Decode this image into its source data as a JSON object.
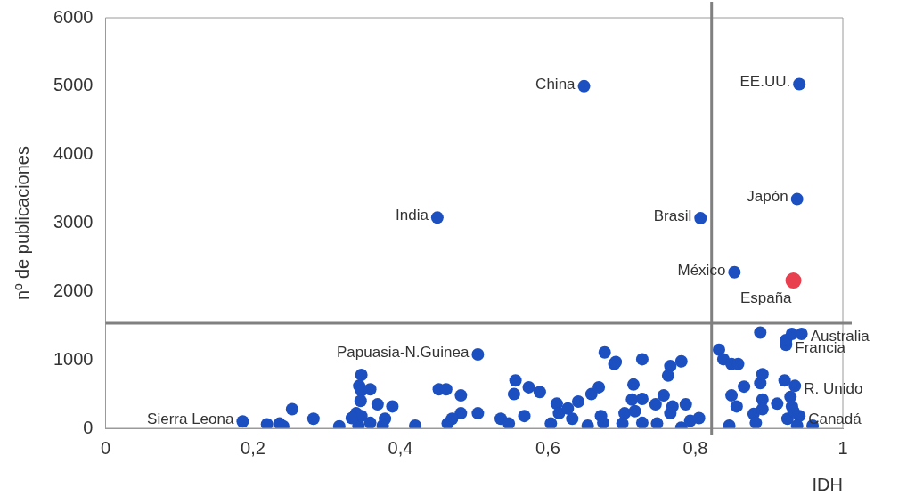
{
  "chart_data": {
    "type": "scatter",
    "xlabel": "IDH",
    "ylabel": "nº de publicaciones",
    "xlim": [
      0,
      1
    ],
    "xticks": [
      0,
      {
        "value": 0.2,
        "label": "0,2"
      },
      {
        "value": 0.4,
        "label": "0,4"
      },
      {
        "value": 0.6,
        "label": "0,6"
      },
      {
        "value": 0.8,
        "label": "0,8"
      },
      1
    ],
    "ylim": [
      0,
      6000
    ],
    "yticks": [
      0,
      1000,
      2000,
      3000,
      4000,
      5000,
      6000
    ],
    "grid": false,
    "legend": false,
    "marker": "circle",
    "ref_lines": [
      {
        "axis": "x",
        "value": 0.822,
        "color": "#808080"
      },
      {
        "axis": "y",
        "value": 1535,
        "color": "#808080"
      }
    ],
    "series": [
      {
        "color": "#1c4fc0",
        "x": [
          0.649,
          0.941,
          0.938,
          0.45,
          0.807,
          0.853,
          0.186,
          0.219,
          0.236,
          0.241,
          0.253,
          0.282,
          0.317,
          0.344,
          0.347,
          0.347,
          0.346,
          0.34,
          0.343,
          0.359,
          0.369,
          0.389,
          0.347,
          0.359,
          0.379,
          0.376,
          0.334,
          0.42,
          0.452,
          0.462,
          0.482,
          0.482,
          0.47,
          0.464,
          0.505,
          0.505,
          0.536,
          0.547,
          0.556,
          0.554,
          0.574,
          0.589,
          0.568,
          0.604,
          0.612,
          0.615,
          0.627,
          0.633,
          0.641,
          0.654,
          0.659,
          0.669,
          0.677,
          0.69,
          0.672,
          0.675,
          0.692,
          0.728,
          0.716,
          0.766,
          0.781,
          0.763,
          0.757,
          0.714,
          0.728,
          0.704,
          0.718,
          0.746,
          0.769,
          0.787,
          0.701,
          0.728,
          0.748,
          0.766,
          0.781,
          0.793,
          0.805,
          0.832,
          0.838,
          0.849,
          0.858,
          0.888,
          0.923,
          0.923,
          0.931,
          0.944,
          0.846,
          0.849,
          0.856,
          0.866,
          0.888,
          0.891,
          0.879,
          0.882,
          0.891,
          0.891,
          0.911,
          0.921,
          0.935,
          0.929,
          0.931,
          0.925,
          0.941,
          0.938,
          0.959,
          0.933
        ],
        "values": [
          5000,
          5030,
          3350,
          3080,
          3070,
          2280,
          100,
          60,
          70,
          30,
          280,
          140,
          30,
          620,
          780,
          550,
          400,
          220,
          40,
          570,
          350,
          320,
          180,
          80,
          140,
          40,
          150,
          40,
          570,
          570,
          480,
          220,
          140,
          70,
          220,
          1080,
          140,
          70,
          700,
          500,
          600,
          530,
          180,
          70,
          360,
          220,
          290,
          140,
          390,
          40,
          500,
          600,
          1110,
          940,
          180,
          80,
          970,
          1010,
          640,
          910,
          980,
          770,
          480,
          420,
          430,
          220,
          250,
          350,
          320,
          350,
          70,
          80,
          70,
          220,
          10,
          110,
          150,
          1150,
          1010,
          940,
          940,
          1400,
          1220,
          1290,
          1380,
          1380,
          40,
          480,
          320,
          610,
          660,
          790,
          210,
          80,
          420,
          280,
          360,
          700,
          620,
          460,
          320,
          140,
          180,
          40,
          40,
          250
        ]
      },
      {
        "name": "España",
        "color": "#e8404f",
        "x": [
          0.933
        ],
        "values": [
          2160
        ]
      }
    ],
    "annotations": [
      {
        "text": "China",
        "x": 0.649,
        "y": 5000
      },
      {
        "text": "EE.UU.",
        "x": 0.941,
        "y": 5030
      },
      {
        "text": "Japón",
        "x": 0.938,
        "y": 3350
      },
      {
        "text": "India",
        "x": 0.45,
        "y": 3080
      },
      {
        "text": "Brasil",
        "x": 0.807,
        "y": 3070
      },
      {
        "text": "México",
        "x": 0.853,
        "y": 2280
      },
      {
        "text": "Sierra Leona",
        "x": 0.186,
        "y": 100
      },
      {
        "text": "Papuasia-N.Guinea",
        "x": 0.505,
        "y": 1080
      },
      {
        "text": "Australia",
        "x": 0.944,
        "y": 1383
      },
      {
        "text": "Francia",
        "x": 0.923,
        "y": 1217
      },
      {
        "text": "R. Unido",
        "x": 0.935,
        "y": 622
      },
      {
        "text": "Canadá",
        "x": 0.941,
        "y": 180
      }
    ]
  }
}
